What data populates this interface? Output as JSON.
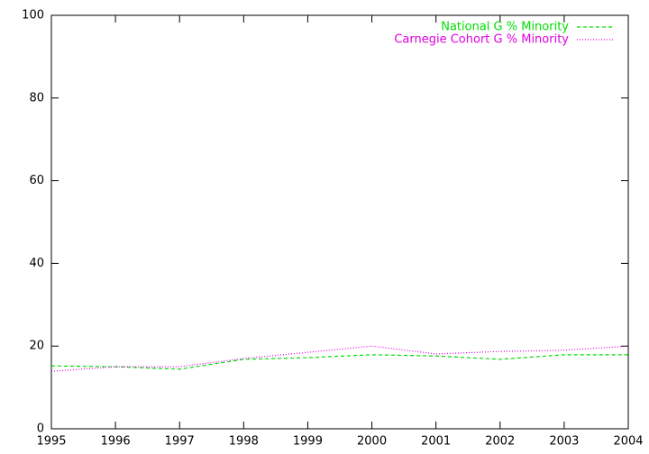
{
  "chart_data": {
    "type": "line",
    "x": [
      1995,
      1996,
      1997,
      1998,
      1999,
      2000,
      2001,
      2002,
      2003,
      2004
    ],
    "series": [
      {
        "name": "National G % Minority",
        "color": "#00e000",
        "dash": "4,3",
        "values": [
          15.2,
          15.0,
          14.4,
          16.8,
          17.2,
          17.9,
          17.6,
          16.8,
          17.9,
          17.9
        ]
      },
      {
        "name": "Carnegie Cohort G % Minority",
        "color": "#e000e0",
        "dash": "1,2",
        "values": [
          13.9,
          15.0,
          15.0,
          17.0,
          18.5,
          20.0,
          18.1,
          18.7,
          19.0,
          20.0
        ]
      }
    ],
    "xlim": [
      1995,
      2004
    ],
    "xticks": [
      1995,
      1996,
      1997,
      1998,
      1999,
      2000,
      2001,
      2002,
      2003,
      2004
    ],
    "ylim": [
      0,
      100
    ],
    "yticks": [
      0,
      20,
      40,
      60,
      80,
      100
    ],
    "legend": "top-right"
  }
}
